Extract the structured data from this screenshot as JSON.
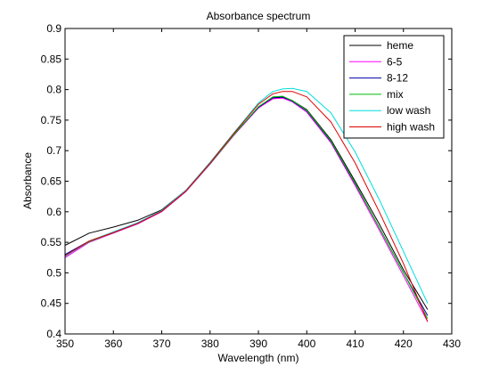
{
  "chart_data": {
    "type": "line",
    "title": "Absorbance spectrum",
    "xlabel": "Wavelength (nm)",
    "ylabel": "Absorbance",
    "xlim": [
      350,
      430
    ],
    "ylim": [
      0.4,
      0.9
    ],
    "xticks": [
      "350",
      "360",
      "370",
      "380",
      "390",
      "400",
      "410",
      "420",
      "430"
    ],
    "yticks": [
      "0.4",
      "0.45",
      "0.5",
      "0.55",
      "0.6",
      "0.65",
      "0.7",
      "0.75",
      "0.8",
      "0.85",
      "0.9"
    ],
    "grid": false,
    "legend_position": "top-right",
    "x": [
      350,
      355,
      360,
      365,
      370,
      375,
      380,
      385,
      390,
      393,
      395,
      397,
      400,
      405,
      410,
      415,
      420,
      425
    ],
    "series": [
      {
        "name": "heme",
        "color": "#000000",
        "values": [
          0.545,
          0.565,
          0.575,
          0.586,
          0.603,
          0.635,
          0.68,
          0.728,
          0.77,
          0.786,
          0.787,
          0.782,
          0.767,
          0.718,
          0.65,
          0.58,
          0.505,
          0.44
        ]
      },
      {
        "name": "6-5",
        "color": "#ff00ff",
        "values": [
          0.525,
          0.55,
          0.565,
          0.58,
          0.6,
          0.633,
          0.678,
          0.726,
          0.77,
          0.785,
          0.786,
          0.78,
          0.763,
          0.713,
          0.643,
          0.57,
          0.495,
          0.42
        ]
      },
      {
        "name": "8-12",
        "color": "#0000aa",
        "values": [
          0.53,
          0.552,
          0.566,
          0.581,
          0.601,
          0.634,
          0.679,
          0.727,
          0.771,
          0.787,
          0.788,
          0.781,
          0.765,
          0.715,
          0.646,
          0.574,
          0.5,
          0.43
        ]
      },
      {
        "name": "mix",
        "color": "#00bb00",
        "values": [
          0.528,
          0.551,
          0.566,
          0.581,
          0.601,
          0.634,
          0.679,
          0.727,
          0.772,
          0.788,
          0.789,
          0.782,
          0.766,
          0.716,
          0.647,
          0.574,
          0.5,
          0.425
        ]
      },
      {
        "name": "low wash",
        "color": "#00dddd",
        "values": [
          0.527,
          0.552,
          0.567,
          0.582,
          0.602,
          0.635,
          0.681,
          0.73,
          0.778,
          0.797,
          0.801,
          0.802,
          0.797,
          0.762,
          0.698,
          0.62,
          0.535,
          0.45
        ]
      },
      {
        "name": "high wash",
        "color": "#dd0000",
        "values": [
          0.528,
          0.552,
          0.566,
          0.581,
          0.601,
          0.634,
          0.68,
          0.729,
          0.776,
          0.793,
          0.797,
          0.797,
          0.788,
          0.747,
          0.68,
          0.6,
          0.515,
          0.42
        ]
      }
    ]
  }
}
